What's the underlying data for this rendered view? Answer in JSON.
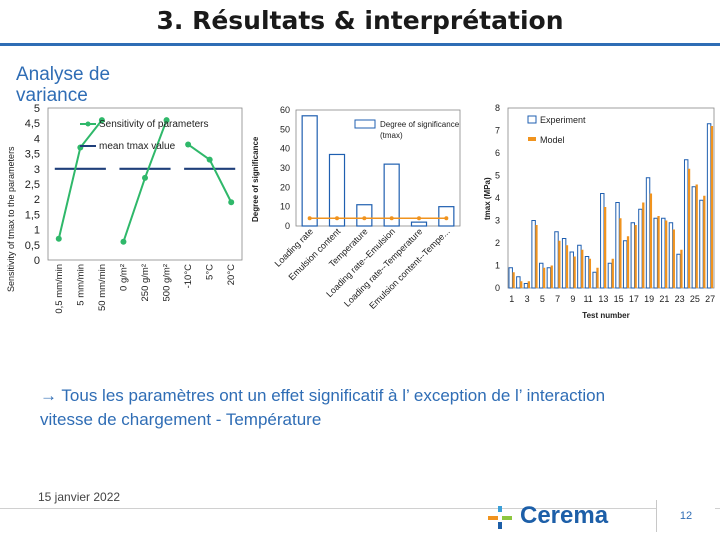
{
  "slide": {
    "title": "3. Résultats & interprétation",
    "subtitle": "Analyse de variance",
    "conclusion": "→ Tous les paramètres ont un effet significatif à l’ exception de l’ interaction vitesse de chargement - Température",
    "date": "15 janvier 2022",
    "logo_text": "Cerema",
    "page_number": "12",
    "colors": {
      "accent": "#2f6db5",
      "green": "#2fb86a",
      "navy": "#1f3f7a",
      "orange": "#f0931e"
    }
  },
  "chart_data": [
    {
      "type": "line",
      "ylabel": "Sensitivity of tmax to the parameters",
      "ylim": [
        0,
        5
      ],
      "yticks": [
        "5",
        "4,5",
        "4",
        "3,5",
        "3",
        "2,5",
        "2",
        "1,5",
        "1",
        "0,5",
        "0"
      ],
      "categories": [
        "0,5 mm/min",
        "5 mm/min",
        "50 mm/min",
        "0 g/m²",
        "250 g/m²",
        "500 g/m²",
        "-10°C",
        "5°C",
        "20°C"
      ],
      "groups": [
        {
          "levels": [
            "0,5 mm/min",
            "5 mm/min",
            "50 mm/min"
          ],
          "sensitivity": [
            0.7,
            3.7,
            4.6
          ],
          "mean": 3.0
        },
        {
          "levels": [
            "0 g/m²",
            "250 g/m²",
            "500 g/m²"
          ],
          "sensitivity": [
            0.6,
            2.7,
            4.6
          ],
          "mean": 3.0
        },
        {
          "levels": [
            "-10°C",
            "5°C",
            "20°C"
          ],
          "sensitivity": [
            3.8,
            3.3,
            1.9
          ],
          "mean": 3.0
        }
      ],
      "legend": [
        "Sensitivity of parameters",
        "mean tmax value"
      ]
    },
    {
      "type": "bar",
      "ylabel": "Degree of significance",
      "ylim": [
        0,
        60
      ],
      "yticks": [
        "60",
        "50",
        "40",
        "30",
        "20",
        "10",
        "0"
      ],
      "categories": [
        "Loading rate",
        "Emulsion content",
        "Temperature",
        "Loading rate--Emulsion",
        "Loading rate--Temperature",
        "Emulsion content--Tempe..."
      ],
      "values": [
        57,
        37,
        11,
        32,
        2,
        10
      ],
      "threshold": 4,
      "legend": [
        "Degree of significance (tmax)"
      ]
    },
    {
      "type": "bar",
      "xlabel": "Test number",
      "ylabel": "tmax (MPa)",
      "ylim": [
        0,
        8
      ],
      "yticks": [
        "8",
        "7",
        "6",
        "5",
        "4",
        "3",
        "2",
        "1",
        "0"
      ],
      "xticks": [
        "1",
        "3",
        "5",
        "7",
        "9",
        "11",
        "13",
        "15",
        "17",
        "19",
        "21",
        "23",
        "25",
        "27"
      ],
      "series": [
        {
          "name": "Experiment",
          "values": [
            0.9,
            0.5,
            0.2,
            3.0,
            1.1,
            0.9,
            2.5,
            2.2,
            1.6,
            1.9,
            1.4,
            0.7,
            4.2,
            1.1,
            3.8,
            2.1,
            2.9,
            3.5,
            4.9,
            3.1,
            3.1,
            2.9,
            1.5,
            5.7,
            4.5,
            3.9,
            7.3
          ]
        },
        {
          "name": "Model",
          "values": [
            0.7,
            0.3,
            0.3,
            2.8,
            0.9,
            1.0,
            2.1,
            1.9,
            1.4,
            1.7,
            1.3,
            0.9,
            3.6,
            1.3,
            3.1,
            2.3,
            2.8,
            3.8,
            4.2,
            3.2,
            3.0,
            2.6,
            1.7,
            5.3,
            4.6,
            4.1,
            7.2
          ]
        }
      ],
      "legend": [
        "Experiment",
        "Model"
      ]
    }
  ]
}
